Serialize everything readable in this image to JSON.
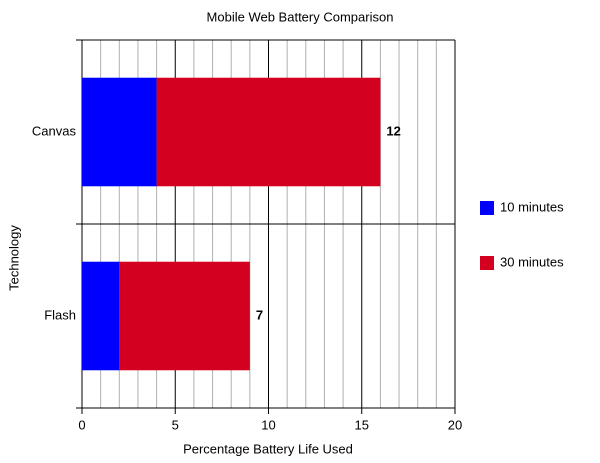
{
  "chart_data": {
    "type": "stacked-bar-horizontal",
    "title": "Mobile Web Battery Comparison",
    "x_label": "Percentage Battery Life Used",
    "y_label": "Technology",
    "categories": [
      "Canvas",
      "Flash"
    ],
    "series": [
      {
        "name": "10 minutes",
        "color": "#0000ff",
        "values": [
          4,
          2
        ]
      },
      {
        "name": "30 minutes",
        "color": "#d40020",
        "values": [
          12,
          7
        ]
      }
    ],
    "xlim": [
      0,
      20
    ],
    "xticks": [
      0,
      5,
      10,
      15,
      20
    ],
    "xminorticks": [
      1,
      2,
      3,
      4,
      6,
      7,
      8,
      9,
      11,
      12,
      13,
      14,
      16,
      17,
      18,
      19
    ],
    "grid": true,
    "legend": "right"
  }
}
